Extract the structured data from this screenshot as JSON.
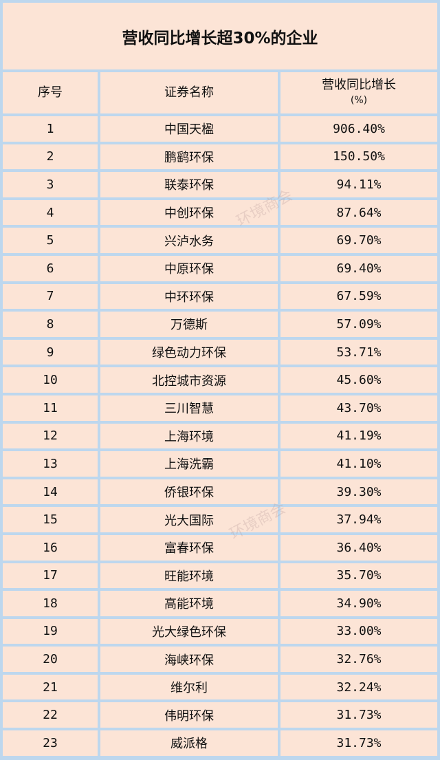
{
  "title": "营收同比增长超30%的企业",
  "headers": {
    "index": "序号",
    "name": "证券名称",
    "growth": "营收同比增长",
    "growth_unit": "(%)"
  },
  "rows": [
    {
      "index": "1",
      "name": "中国天楹",
      "growth": "906.40%"
    },
    {
      "index": "2",
      "name": "鹏鹞环保",
      "growth": "150.50%"
    },
    {
      "index": "3",
      "name": "联泰环保",
      "growth": "94.11%"
    },
    {
      "index": "4",
      "name": "中创环保",
      "growth": "87.64%"
    },
    {
      "index": "5",
      "name": "兴泸水务",
      "growth": "69.70%"
    },
    {
      "index": "6",
      "name": "中原环保",
      "growth": "69.40%"
    },
    {
      "index": "7",
      "name": "中环环保",
      "growth": "67.59%"
    },
    {
      "index": "8",
      "name": "万德斯",
      "growth": "57.09%"
    },
    {
      "index": "9",
      "name": "绿色动力环保",
      "growth": "53.71%"
    },
    {
      "index": "10",
      "name": "北控城市资源",
      "growth": "45.60%"
    },
    {
      "index": "11",
      "name": "三川智慧",
      "growth": "43.70%"
    },
    {
      "index": "12",
      "name": "上海环境",
      "growth": "41.19%"
    },
    {
      "index": "13",
      "name": "上海洗霸",
      "growth": "41.10%"
    },
    {
      "index": "14",
      "name": "侨银环保",
      "growth": "39.30%"
    },
    {
      "index": "15",
      "name": "光大国际",
      "growth": "37.94%"
    },
    {
      "index": "16",
      "name": "富春环保",
      "growth": "36.40%"
    },
    {
      "index": "17",
      "name": "旺能环境",
      "growth": "35.70%"
    },
    {
      "index": "18",
      "name": "高能环境",
      "growth": "34.90%"
    },
    {
      "index": "19",
      "name": "光大绿色环保",
      "growth": "33.00%"
    },
    {
      "index": "20",
      "name": "海峡环保",
      "growth": "32.76%"
    },
    {
      "index": "21",
      "name": "维尔利",
      "growth": "32.24%"
    },
    {
      "index": "22",
      "name": "伟明环保",
      "growth": "31.73%"
    },
    {
      "index": "23",
      "name": "威派格",
      "growth": "31.73%"
    }
  ],
  "watermark": "环境商会",
  "colors": {
    "cell_bg": "#fce4d6",
    "border": "#bdd7ee"
  }
}
